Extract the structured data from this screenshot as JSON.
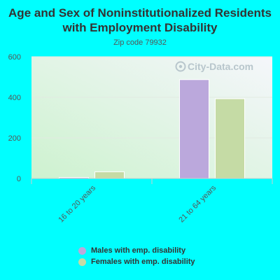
{
  "page": {
    "title": "Age and Sex of Noninstitutionalized Residents with Employment Disability",
    "subtitle": "Zip code 79932",
    "watermark": "City-Data.com"
  },
  "chart_data": {
    "type": "bar",
    "title": "Age and Sex of Noninstitutionalized Residents with Employment Disability",
    "subtitle": "Zip code 79932",
    "categories": [
      "16 to 20 years",
      "21 to 64 years"
    ],
    "series": [
      {
        "name": "Males with emp. disability",
        "values": [
          5,
          487
        ],
        "color": "#bba8dc"
      },
      {
        "name": "Females with emp. disability",
        "values": [
          33,
          393
        ],
        "color": "#c5dba5"
      }
    ],
    "ylim": [
      0,
      600
    ],
    "yticks": [
      0,
      200,
      400,
      600
    ],
    "grid": true,
    "legend": "bottom",
    "xlabel": "",
    "ylabel": ""
  }
}
